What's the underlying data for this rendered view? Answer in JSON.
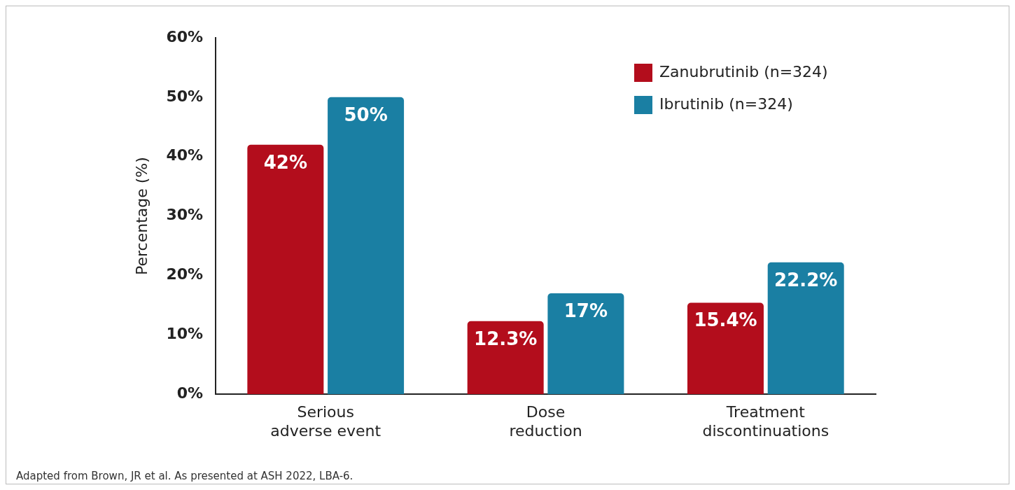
{
  "chart_data": {
    "type": "bar",
    "categories": [
      "Serious\nadverse event",
      "Dose\nreduction",
      "Treatment\ndiscontinuations"
    ],
    "series": [
      {
        "name": "Zanubrutinib (n=324)",
        "color": "#b30d1c",
        "values": [
          42,
          12.3,
          15.4
        ],
        "value_labels": [
          "42%",
          "12.3%",
          "15.4%"
        ]
      },
      {
        "name": "Ibrutinib (n=324)",
        "color": "#1a7fa3",
        "values": [
          50,
          17,
          22.2
        ],
        "value_labels": [
          "50%",
          "17%",
          "22.2%"
        ]
      }
    ],
    "ylabel": "Percentage (%)",
    "ylim": [
      0,
      60
    ],
    "yticks": [
      {
        "value": 0,
        "label": "0%"
      },
      {
        "value": 10,
        "label": "10%"
      },
      {
        "value": 20,
        "label": "20%"
      },
      {
        "value": 30,
        "label": "30%"
      },
      {
        "value": 40,
        "label": "40%"
      },
      {
        "value": 50,
        "label": "50%"
      },
      {
        "value": 60,
        "label": "60%"
      }
    ],
    "grid": false,
    "legend": "top right",
    "annotations": [
      "Adapted from Brown, JR et al. As presented at ASH 2022, LBA-6."
    ]
  }
}
